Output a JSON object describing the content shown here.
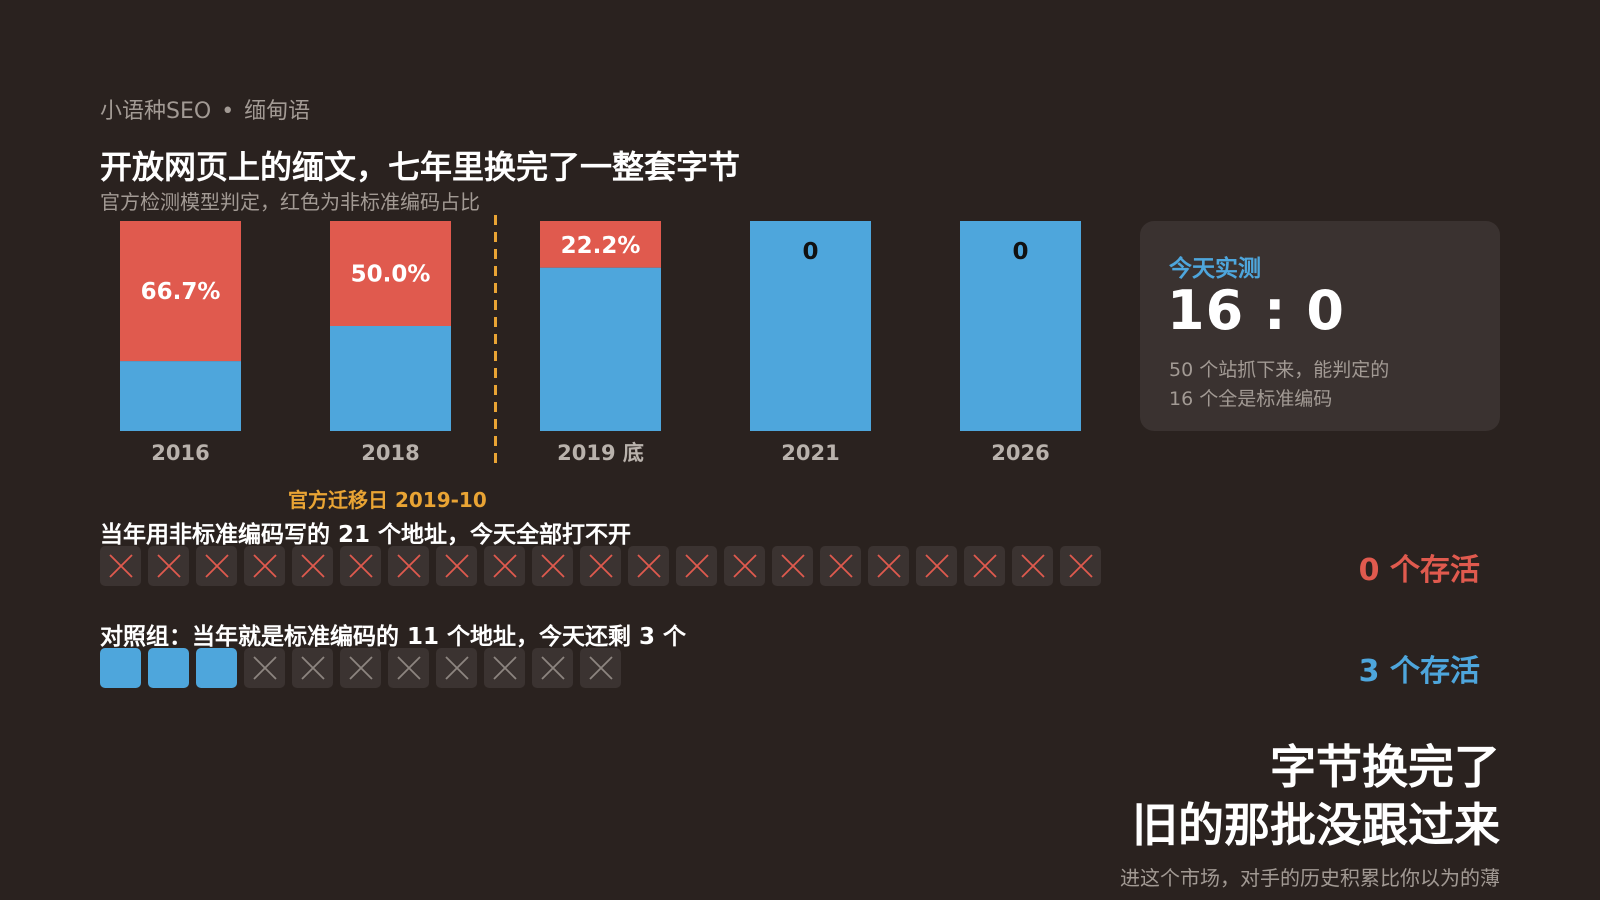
{
  "header": {
    "kicker_left": "小语种SEO",
    "kicker_sep": "•",
    "kicker_right": "缅甸语",
    "title": "开放网页上的缅文，七年里换完了一整套字节",
    "subtitle": "官方检测模型判定，红色为非标准编码占比"
  },
  "colors": {
    "background": "#2a221f",
    "nonstandard": "#e05a4e",
    "standard": "#4ea6dc",
    "migration": "#e9a434",
    "card_bg": "#3a3230",
    "muted_text": "#a29a94"
  },
  "chart_data": {
    "type": "bar",
    "stacked": true,
    "categories": [
      "2016",
      "2018",
      "2019 底",
      "2021",
      "2026"
    ],
    "series": [
      {
        "values": [
          66.7,
          50.0,
          22.2,
          0,
          0
        ]
      },
      {
        "values": [
          33.3,
          50.0,
          77.8,
          100,
          100
        ]
      }
    ],
    "data_labels": [
      "66.7%",
      "50.0%",
      "22.2%",
      "0",
      "0"
    ],
    "ylim": [
      0,
      100
    ],
    "annotation": {
      "label": "官方迁移日 2019-10",
      "between": [
        "2018",
        "2019 底"
      ]
    },
    "grid": false
  },
  "card": {
    "heading": "今天实测",
    "score": "16 : 0",
    "note_line1": "50 个站抓下来，能判定的",
    "note_line2": "16 个全是标准编码"
  },
  "groups": [
    {
      "label": "当年用非标准编码写的 21 个地址，今天全部打不开",
      "total": 21,
      "alive": 0,
      "survive_label": "0 个存活"
    },
    {
      "label": "对照组：当年就是标准编码的 11 个地址，今天还剩 3 个",
      "total": 11,
      "alive": 3,
      "survive_label": "3 个存活"
    }
  ],
  "conclusion": {
    "line1": "字节换完了",
    "line2": "旧的那批没跟过来",
    "footnote": "进这个市场，对手的历史积累比你以为的薄"
  }
}
